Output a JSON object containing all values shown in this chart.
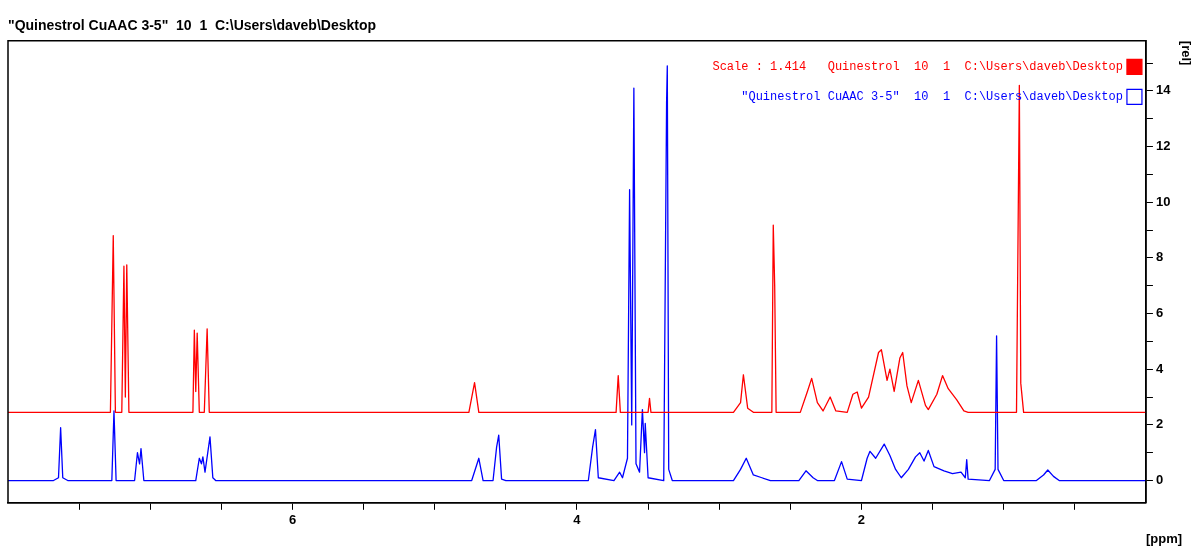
{
  "chart_data": {
    "type": "line",
    "title": "\"Quinestrol CuAAC 3-5\"  10  1  C:\\Users\\daveb\\Desktop",
    "xlabel": "[ppm]",
    "ylabel": "[rel]",
    "xlim": [
      8,
      0
    ],
    "ylim": [
      -0.8,
      15.8
    ],
    "xticks": [
      {
        "value": 7.5,
        "label": null
      },
      {
        "value": 7,
        "label": null
      },
      {
        "value": 6.5,
        "label": null
      },
      6,
      {
        "value": 5.5,
        "label": null
      },
      {
        "value": 5,
        "label": null
      },
      {
        "value": 4.5,
        "label": null
      },
      4,
      {
        "value": 3.5,
        "label": null
      },
      {
        "value": 3,
        "label": null
      },
      {
        "value": 2.5,
        "label": null
      },
      2,
      {
        "value": 1.5,
        "label": null
      },
      {
        "value": 1,
        "label": null
      },
      {
        "value": 0.5,
        "label": null
      }
    ],
    "yticks": [
      0,
      {
        "value": 1,
        "label": null
      },
      2,
      {
        "value": 3,
        "label": null
      },
      4,
      {
        "value": 5,
        "label": null
      },
      6,
      {
        "value": 7,
        "label": null
      },
      8,
      {
        "value": 9,
        "label": null
      },
      10,
      {
        "value": 11,
        "label": null
      },
      12,
      {
        "value": 13,
        "label": null
      },
      14,
      {
        "value": 15,
        "label": null
      }
    ],
    "grid": false,
    "legend": "top right",
    "marker": "none",
    "line_style": "solid",
    "series": [
      {
        "name": "Scale : 1.414   Quinestrol  10  1  C:\\Users\\daveb\\Desktop",
        "color": "#ff0000",
        "x": [
          8.0,
          7.28,
          7.26,
          7.245,
          7.2,
          7.185,
          7.175,
          7.165,
          7.15,
          6.7,
          6.69,
          6.68,
          6.67,
          6.655,
          6.62,
          6.6,
          6.585,
          4.76,
          4.72,
          4.69,
          3.725,
          3.71,
          3.695,
          3.5,
          3.49,
          3.48,
          2.9,
          2.85,
          2.83,
          2.8,
          2.76,
          2.63,
          2.62,
          2.61,
          2.6,
          2.43,
          2.38,
          2.35,
          2.31,
          2.27,
          2.22,
          2.18,
          2.1,
          2.06,
          2.03,
          2.0,
          1.95,
          1.88,
          1.86,
          1.82,
          1.8,
          1.77,
          1.73,
          1.71,
          1.68,
          1.65,
          1.6,
          1.55,
          1.53,
          1.47,
          1.43,
          1.39,
          1.33,
          1.28,
          1.25,
          0.91,
          0.89,
          0.88,
          0.86,
          0.0
        ],
        "values": [
          2.45,
          2.45,
          8.8,
          2.45,
          2.45,
          7.7,
          3.0,
          7.75,
          2.45,
          2.45,
          5.4,
          3.2,
          5.3,
          2.45,
          2.45,
          5.45,
          2.45,
          2.45,
          3.52,
          2.45,
          2.45,
          3.77,
          2.45,
          2.45,
          2.95,
          2.45,
          2.45,
          2.8,
          3.8,
          2.6,
          2.45,
          2.45,
          9.18,
          7.0,
          2.45,
          2.45,
          3.2,
          3.67,
          2.8,
          2.5,
          3.0,
          2.5,
          2.45,
          3.1,
          3.18,
          2.6,
          3.0,
          4.6,
          4.7,
          3.6,
          4.0,
          3.2,
          4.4,
          4.6,
          3.4,
          2.8,
          3.6,
          2.7,
          2.55,
          3.1,
          3.77,
          3.3,
          2.9,
          2.5,
          2.45,
          2.45,
          14.2,
          3.5,
          2.45,
          2.45
        ]
      },
      {
        "name": "\"Quinestrol CuAAC 3-5\"  10  1  C:\\Users\\daveb\\Desktop",
        "color": "#0000ff",
        "x": [
          8.0,
          7.68,
          7.645,
          7.63,
          7.615,
          7.58,
          7.27,
          7.255,
          7.24,
          7.11,
          7.09,
          7.075,
          7.065,
          7.045,
          6.68,
          6.655,
          6.64,
          6.63,
          6.615,
          6.58,
          6.56,
          6.54,
          4.74,
          4.69,
          4.66,
          4.59,
          4.565,
          4.55,
          4.53,
          4.5,
          3.92,
          3.89,
          3.87,
          3.85,
          3.74,
          3.7,
          3.68,
          3.645,
          3.63,
          3.615,
          3.6,
          3.585,
          3.56,
          3.54,
          3.525,
          3.52,
          3.5,
          3.39,
          3.37,
          3.365,
          3.355,
          3.33,
          2.9,
          2.85,
          2.81,
          2.76,
          2.7,
          2.64,
          2.44,
          2.39,
          2.34,
          2.31,
          2.19,
          2.14,
          2.1,
          2.0,
          1.96,
          1.94,
          1.9,
          1.84,
          1.8,
          1.76,
          1.72,
          1.67,
          1.62,
          1.59,
          1.56,
          1.53,
          1.49,
          1.42,
          1.36,
          1.3,
          1.27,
          1.26,
          1.25,
          1.1,
          1.06,
          1.05,
          1.04,
          1.0,
          0.77,
          0.72,
          0.69,
          0.65,
          0.61,
          0.0
        ],
        "values": [
          0,
          0,
          0.1,
          1.9,
          0.1,
          0,
          0,
          2.5,
          0,
          0,
          1.0,
          0.6,
          1.15,
          0,
          0,
          0.8,
          0.6,
          0.85,
          0.3,
          1.57,
          0.1,
          0,
          0,
          0.8,
          0,
          0,
          1.2,
          1.63,
          0.05,
          0,
          0,
          1.2,
          1.83,
          0.1,
          0,
          0.3,
          0.1,
          0.8,
          10.45,
          2.0,
          14.1,
          0.6,
          0.3,
          2.55,
          1.0,
          2.05,
          0.1,
          0,
          13.57,
          14.9,
          0.4,
          0,
          0,
          0.4,
          0.8,
          0.2,
          0.1,
          0,
          0,
          0.35,
          0.1,
          0,
          0,
          0.68,
          0.05,
          0,
          0.8,
          1.05,
          0.8,
          1.31,
          0.9,
          0.4,
          0.1,
          0.4,
          0.85,
          1.0,
          0.7,
          1.08,
          0.5,
          0.35,
          0.25,
          0.3,
          0.1,
          0.75,
          0.05,
          0,
          0.4,
          5.2,
          0.4,
          0,
          0,
          0.2,
          0.38,
          0.15,
          0,
          0
        ]
      }
    ]
  }
}
